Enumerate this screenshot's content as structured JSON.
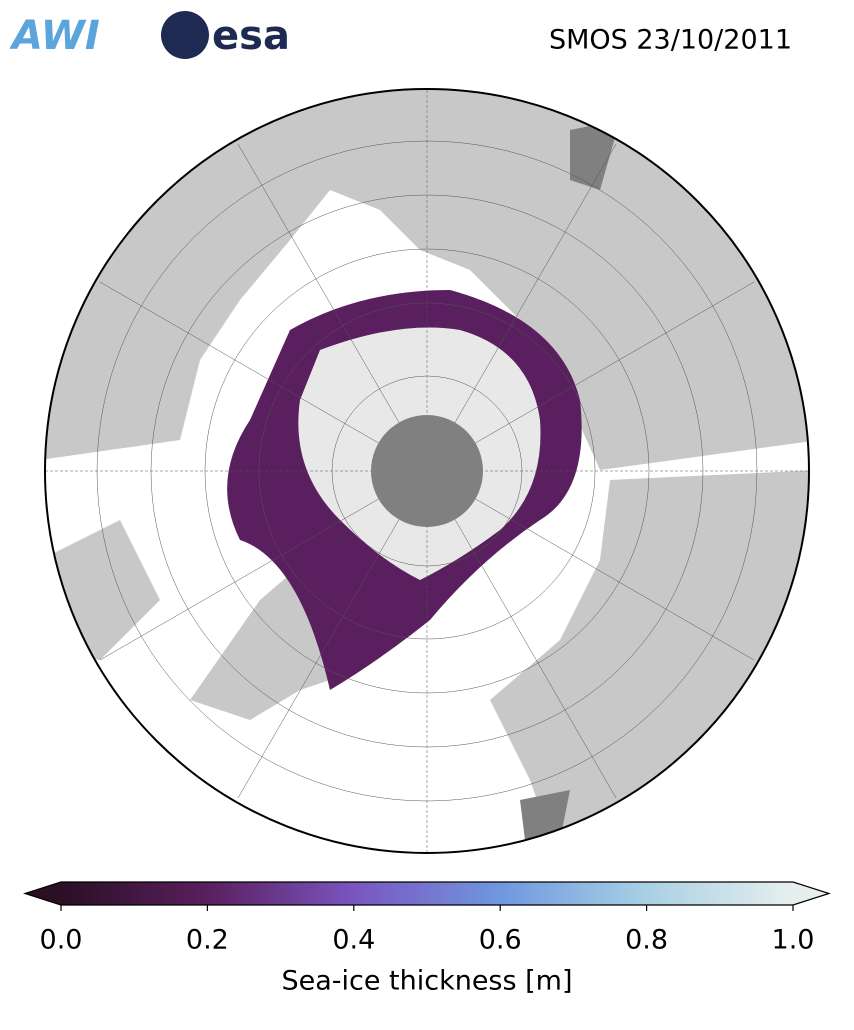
{
  "header": {
    "logos": [
      "AWI",
      "esa"
    ],
    "title": "SMOS 23/10/2011"
  },
  "colorbar": {
    "label": "Sea-ice thickness [m]",
    "lim": [
      0,
      1
    ],
    "ticks": [
      {
        "value": 0,
        "label": "0.0"
      },
      0.2,
      0.4,
      0.6,
      0.8,
      {
        "value": 1,
        "label": "1.0"
      }
    ],
    "colors": [
      "#2a0f25",
      "#5a1f5e",
      "#7a55c0",
      "#6f97df",
      "#a9d0e4",
      "#e6efee"
    ],
    "extend": "both"
  }
}
